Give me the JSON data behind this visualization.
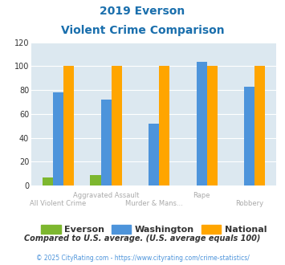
{
  "title_line1": "2019 Everson",
  "title_line2": "Violent Crime Comparison",
  "categories": [
    "All Violent Crime",
    "Aggravated Assault",
    "Murder & Mans...",
    "Rape",
    "Robbery"
  ],
  "labels_row1": [
    "",
    "Aggravated Assault",
    "",
    "Rape",
    ""
  ],
  "labels_row2": [
    "All Violent Crime",
    "",
    "Murder & Mans...",
    "",
    "Robbery"
  ],
  "everson": [
    7,
    9,
    0,
    0,
    0
  ],
  "washington": [
    78,
    72,
    52,
    104,
    83
  ],
  "national": [
    100,
    100,
    100,
    100,
    100
  ],
  "color_everson": "#7db72f",
  "color_washington": "#4d94db",
  "color_national": "#ffa500",
  "ylim": [
    0,
    120
  ],
  "yticks": [
    0,
    20,
    40,
    60,
    80,
    100,
    120
  ],
  "bg_color": "#dce8f0",
  "title_color": "#1a6fad",
  "footer_text": "Compared to U.S. average. (U.S. average equals 100)",
  "copyright_text": "© 2025 CityRating.com - https://www.cityrating.com/crime-statistics/",
  "footer_color": "#333333",
  "copyright_color": "#4d94db",
  "label_color": "#aaaaaa",
  "bar_width": 0.22
}
